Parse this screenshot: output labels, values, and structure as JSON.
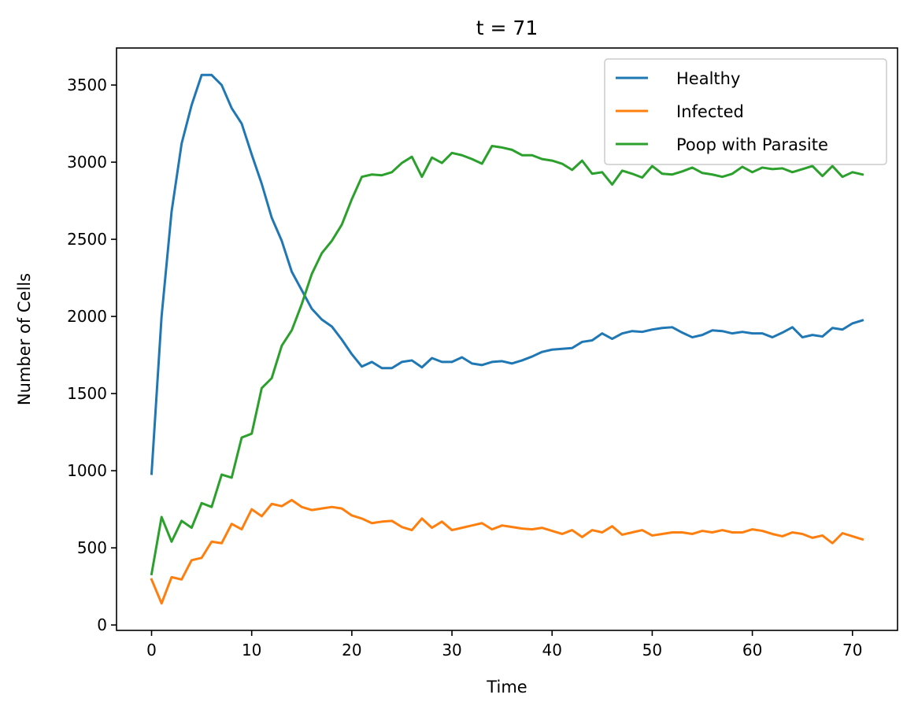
{
  "chart_data": {
    "type": "line",
    "title": "t = 71",
    "xlabel": "Time",
    "ylabel": "Number of Cells",
    "xlim": [
      -3.5,
      74.5
    ],
    "ylim": [
      -35,
      3740
    ],
    "xticks": [
      0,
      10,
      20,
      30,
      40,
      50,
      60,
      70
    ],
    "yticks": [
      0,
      500,
      1000,
      1500,
      2000,
      2500,
      3000,
      3500
    ],
    "grid": false,
    "legend_position": "top-right",
    "series": [
      {
        "name": "Healthy",
        "color": "#1f77b4",
        "values": [
          980,
          2000,
          2680,
          3120,
          3370,
          3565,
          3565,
          3500,
          3350,
          3250,
          3050,
          2860,
          2640,
          2490,
          2290,
          2170,
          2050,
          1980,
          1935,
          1850,
          1755,
          1675,
          1705,
          1665,
          1665,
          1705,
          1715,
          1670,
          1730,
          1705,
          1705,
          1735,
          1695,
          1685,
          1705,
          1710,
          1695,
          1715,
          1740,
          1770,
          1785,
          1790,
          1795,
          1835,
          1845,
          1890,
          1855,
          1890,
          1905,
          1900,
          1915,
          1925,
          1930,
          1895,
          1865,
          1880,
          1910,
          1905,
          1890,
          1900,
          1890,
          1890,
          1865,
          1895,
          1930,
          1865,
          1880,
          1870,
          1925,
          1915,
          1955,
          1975
        ]
      },
      {
        "name": "Infected",
        "color": "#ff7f0e",
        "values": [
          295,
          140,
          310,
          295,
          420,
          435,
          540,
          530,
          655,
          620,
          750,
          705,
          785,
          770,
          810,
          765,
          745,
          755,
          765,
          755,
          710,
          690,
          660,
          670,
          675,
          635,
          615,
          690,
          630,
          670,
          615,
          630,
          645,
          660,
          620,
          645,
          635,
          625,
          620,
          630,
          610,
          590,
          615,
          570,
          615,
          600,
          640,
          585,
          600,
          615,
          580,
          590,
          600,
          600,
          590,
          610,
          600,
          615,
          600,
          600,
          620,
          610,
          590,
          575,
          600,
          590,
          565,
          580,
          530,
          595,
          575,
          555
        ]
      },
      {
        "name": "Poop with Parasite",
        "color": "#2ca02c",
        "values": [
          330,
          700,
          540,
          675,
          630,
          790,
          765,
          975,
          955,
          1215,
          1240,
          1535,
          1600,
          1810,
          1910,
          2080,
          2275,
          2410,
          2490,
          2595,
          2760,
          2905,
          2920,
          2915,
          2935,
          2995,
          3035,
          2905,
          3030,
          2995,
          3060,
          3045,
          3020,
          2990,
          3105,
          3095,
          3080,
          3045,
          3045,
          3020,
          3010,
          2990,
          2950,
          3010,
          2925,
          2935,
          2855,
          2945,
          2925,
          2900,
          2975,
          2925,
          2920,
          2940,
          2965,
          2930,
          2920,
          2905,
          2925,
          2970,
          2935,
          2965,
          2955,
          2960,
          2935,
          2955,
          2975,
          2910,
          2975,
          2905,
          2935,
          2920
        ]
      }
    ]
  }
}
